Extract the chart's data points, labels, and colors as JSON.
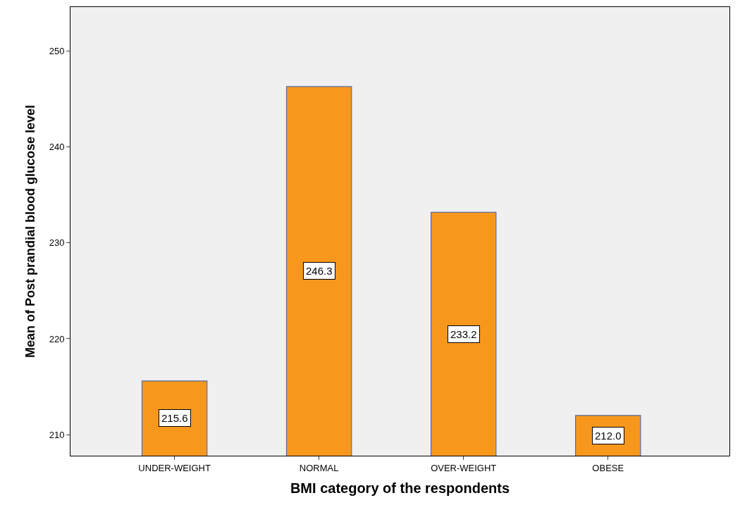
{
  "chart_data": {
    "type": "bar",
    "xlabel": "BMI category of the respondents",
    "ylabel": "Mean of Post prandial blood glucose level",
    "categories": [
      "UNDER-WEIGHT",
      "NORMAL",
      "OVER-WEIGHT",
      "OBESE"
    ],
    "values": [
      215.6,
      246.3,
      233.2,
      212.0
    ],
    "value_labels": [
      "215.6",
      "246.3",
      "233.2",
      "212.0"
    ],
    "color": "#f7981d",
    "ylim": [
      207.8,
      254.6
    ],
    "yticks": [
      210,
      220,
      230,
      240,
      250
    ],
    "grid": false,
    "legend": false
  }
}
